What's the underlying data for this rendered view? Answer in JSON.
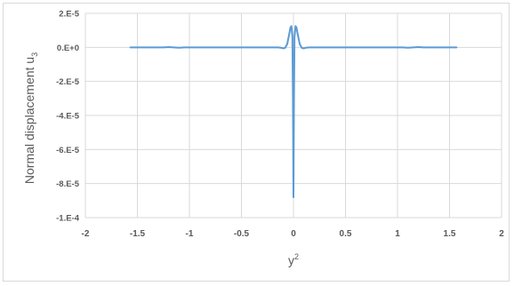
{
  "chart_data": {
    "type": "line",
    "title": "",
    "xlabel": "y",
    "xlabel_sup": "2",
    "ylabel": "Normal displacement u",
    "ylabel_sub": "3",
    "xlim": [
      -2,
      2
    ],
    "ylim": [
      -0.0001,
      2e-05
    ],
    "x_ticks": [
      -2,
      -1.5,
      -1,
      -0.5,
      0,
      0.5,
      1,
      1.5,
      2
    ],
    "x_tick_labels": [
      "-2",
      "-1.5",
      "-1",
      "-0.5",
      "0",
      "0.5",
      "1",
      "1.5",
      "2"
    ],
    "y_ticks": [
      2e-05,
      0,
      -2e-05,
      -4e-05,
      -6e-05,
      -8e-05,
      -0.0001
    ],
    "y_tick_labels": [
      "2.E-5",
      "0.E+0",
      "-2.E-5",
      "-4.E-5",
      "-6.E-5",
      "-8.E-5",
      "-1.E-4"
    ],
    "grid": true,
    "legend": "none",
    "series": [
      {
        "color": "#5b9bd5",
        "x": [
          -1.571,
          -1.4,
          -1.25,
          -1.2,
          -1.15,
          -1.1,
          -1.05,
          -1.0,
          -0.8,
          -0.6,
          -0.4,
          -0.2,
          -0.15,
          -0.12,
          -0.1,
          -0.08,
          -0.06,
          -0.04,
          -0.03,
          -0.02,
          -0.01,
          -0.005,
          0,
          0.005,
          0.01,
          0.02,
          0.03,
          0.04,
          0.06,
          0.08,
          0.1,
          0.12,
          0.15,
          0.2,
          0.4,
          0.6,
          0.8,
          1.0,
          1.05,
          1.1,
          1.15,
          1.2,
          1.25,
          1.4,
          1.571
        ],
        "y": [
          0,
          0,
          0,
          2e-07,
          0,
          -2e-07,
          0,
          0,
          0,
          0,
          0,
          0,
          0,
          -2e-07,
          -6e-07,
          -3e-07,
          2e-06,
          8e-06,
          1.15e-05,
          1.25e-05,
          6e-06,
          -3e-05,
          -8.8e-05,
          -3e-05,
          6e-06,
          1.25e-05,
          1.15e-05,
          8e-06,
          2e-06,
          -3e-07,
          -6e-07,
          -2e-07,
          0,
          0,
          0,
          0,
          0,
          0,
          0,
          -2e-07,
          0,
          2e-07,
          0,
          0,
          0
        ]
      }
    ]
  }
}
